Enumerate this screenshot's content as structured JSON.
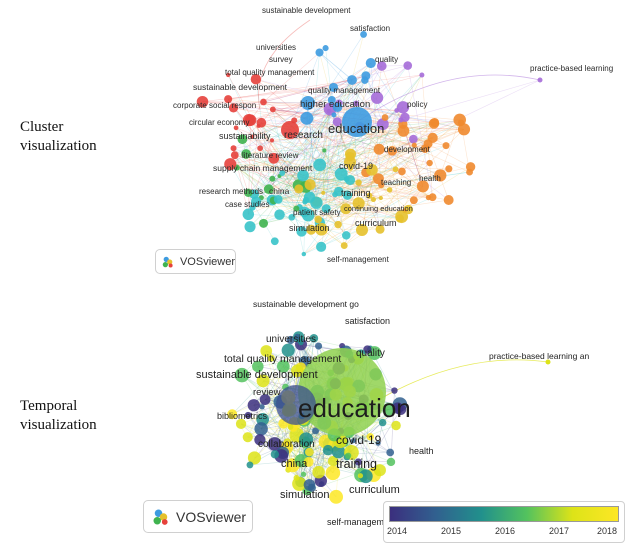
{
  "sections": {
    "cluster": {
      "line1": "Cluster",
      "line2": "visualization"
    },
    "temporal": {
      "line1": "Temporal",
      "line2": "visualization"
    }
  },
  "brand": "VOSviewer",
  "cluster_labels": [
    {
      "text": "sustainable development",
      "size": 8
    },
    {
      "text": "satisfaction",
      "size": 8
    },
    {
      "text": "universities",
      "size": 8
    },
    {
      "text": "survey",
      "size": 8
    },
    {
      "text": "quality",
      "size": 8
    },
    {
      "text": "practice-based learning",
      "size": 8
    },
    {
      "text": "total quality management",
      "size": 8
    },
    {
      "text": "sustainable development",
      "size": 8.5
    },
    {
      "text": "quality management",
      "size": 8
    },
    {
      "text": "corporate social respon",
      "size": 8
    },
    {
      "text": "higher education",
      "size": 9.5
    },
    {
      "text": "policy",
      "size": 8
    },
    {
      "text": "circular economy",
      "size": 8
    },
    {
      "text": "research",
      "size": 10
    },
    {
      "text": "education",
      "size": 13
    },
    {
      "text": "sustainability",
      "size": 9
    },
    {
      "text": "development",
      "size": 8
    },
    {
      "text": "literature review",
      "size": 8
    },
    {
      "text": "supply chain management",
      "size": 8.5
    },
    {
      "text": "covid-19",
      "size": 9
    },
    {
      "text": "health",
      "size": 8
    },
    {
      "text": "teaching",
      "size": 8
    },
    {
      "text": "research methods",
      "size": 8
    },
    {
      "text": "china",
      "size": 8.5
    },
    {
      "text": "training",
      "size": 9
    },
    {
      "text": "case studies",
      "size": 8
    },
    {
      "text": "continuing education",
      "size": 7.5
    },
    {
      "text": "patient safety",
      "size": 8
    },
    {
      "text": "curriculum",
      "size": 9
    },
    {
      "text": "simulation",
      "size": 9
    },
    {
      "text": "self-management",
      "size": 8
    }
  ],
  "temporal_labels": [
    {
      "text": "sustainable development go",
      "size": 8.5
    },
    {
      "text": "satisfaction",
      "size": 9
    },
    {
      "text": "universities",
      "size": 10
    },
    {
      "text": "quality",
      "size": 10
    },
    {
      "text": "practice-based learning an",
      "size": 8.5
    },
    {
      "text": "total quality management",
      "size": 10.5
    },
    {
      "text": "sustainable development",
      "size": 11
    },
    {
      "text": "review",
      "size": 9.5
    },
    {
      "text": "education",
      "size": 26
    },
    {
      "text": "bibliometrics",
      "size": 9
    },
    {
      "text": "collaboration",
      "size": 10
    },
    {
      "text": "covid-19",
      "size": 12
    },
    {
      "text": "health",
      "size": 9
    },
    {
      "text": "china",
      "size": 11
    },
    {
      "text": "training",
      "size": 12.5
    },
    {
      "text": "curriculum",
      "size": 11
    },
    {
      "text": "simulation",
      "size": 11
    },
    {
      "text": "self-managem",
      "size": 9
    }
  ],
  "legend": {
    "ticks": [
      "2014",
      "2015",
      "2016",
      "2017",
      "2018"
    ],
    "colors": [
      "#3b2f7e",
      "#31608f",
      "#21908c",
      "#53c25e",
      "#dde318",
      "#fde725"
    ]
  },
  "palette": {
    "cluster_colors": [
      "#e6413c",
      "#3d9be0",
      "#3fb34f",
      "#a56bd8",
      "#e5c12c",
      "#38c3c9",
      "#f08a2f"
    ]
  }
}
